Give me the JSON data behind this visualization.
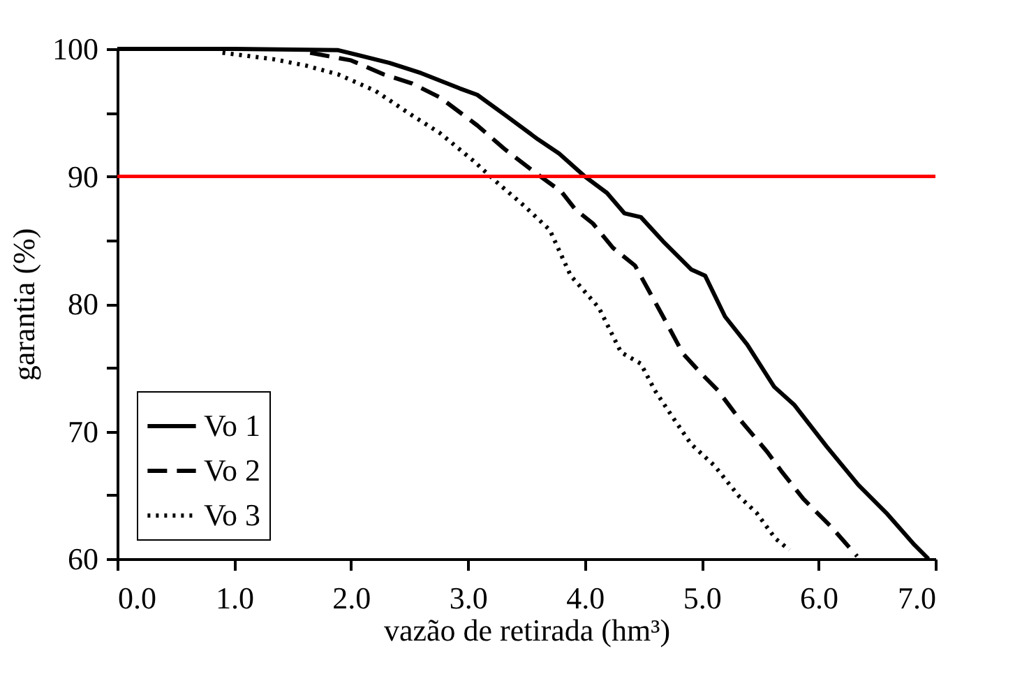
{
  "chart_data": {
    "type": "line",
    "xlabel": "vazão de retirada (hm³)",
    "ylabel": "garantia (%)",
    "xlim": [
      0,
      7
    ],
    "ylim": [
      60,
      100
    ],
    "xticks": [
      {
        "value": 0,
        "label": "0.0"
      },
      {
        "value": 1,
        "label": "1.0"
      },
      {
        "value": 2,
        "label": "2.0"
      },
      {
        "value": 3,
        "label": "3.0"
      },
      {
        "value": 4,
        "label": "4.0"
      },
      {
        "value": 5,
        "label": "5.0"
      },
      {
        "value": 6,
        "label": "6.0"
      },
      {
        "value": 7,
        "label": "7.0"
      }
    ],
    "yticks": [
      60,
      {
        "value": 65,
        "label": null
      },
      70,
      {
        "value": 75,
        "label": null
      },
      80,
      {
        "value": 85,
        "label": null
      },
      90,
      {
        "value": 95,
        "label": null
      },
      100
    ],
    "grid": false,
    "legend": "bottom left",
    "marker": "none",
    "series": [
      {
        "name": "Vo 1",
        "color": "#000000",
        "line_style": "solid",
        "x": [
          0,
          1.0,
          1.89,
          2.33,
          2.6,
          2.93,
          3.08,
          3.32,
          3.6,
          3.78,
          4.0,
          4.19,
          4.34,
          4.48,
          4.67,
          4.91,
          5.03,
          5.2,
          5.39,
          5.62,
          5.79,
          6.07,
          6.34,
          6.58,
          6.82,
          6.94
        ],
        "values": [
          100,
          100,
          99.9,
          98.9,
          98.1,
          96.9,
          96.4,
          94.8,
          92.9,
          91.8,
          90.0,
          88.7,
          87.1,
          86.8,
          84.9,
          82.7,
          82.2,
          79.0,
          76.8,
          73.5,
          72.1,
          68.8,
          65.8,
          63.6,
          61.1,
          60
        ]
      },
      {
        "name": "Vo 2",
        "color": "#000000",
        "line_style": "dashed",
        "x": [
          1.65,
          2.0,
          2.28,
          2.52,
          2.76,
          3.08,
          3.32,
          3.56,
          3.8,
          3.92,
          4.07,
          4.24,
          4.43,
          4.55,
          4.67,
          4.84,
          4.99,
          5.14,
          5.32,
          5.56,
          5.68,
          5.87,
          6.11,
          6.33
        ],
        "values": [
          99.7,
          99.1,
          98.0,
          97.3,
          96.2,
          94.0,
          92.1,
          90.4,
          88.8,
          87.4,
          86.3,
          84.4,
          83.0,
          81.0,
          79.0,
          76.1,
          74.6,
          73.2,
          71.0,
          68.4,
          66.9,
          64.7,
          62.5,
          60.2
        ]
      },
      {
        "name": "Vo 3",
        "color": "#000000",
        "line_style": "dotted",
        "x": [
          0.9,
          1.33,
          1.61,
          1.89,
          2.21,
          2.52,
          2.76,
          3.05,
          3.24,
          3.48,
          3.7,
          3.88,
          4.12,
          4.31,
          4.48,
          4.6,
          4.76,
          4.91,
          5.11,
          5.32,
          5.47,
          5.63,
          5.75
        ],
        "values": [
          99.7,
          99.2,
          98.7,
          98.0,
          96.7,
          94.8,
          93.4,
          91.2,
          89.6,
          87.7,
          85.8,
          82.2,
          79.7,
          76.2,
          75.3,
          73.2,
          71.0,
          69.0,
          67.3,
          64.9,
          63.6,
          61.6,
          60.7
        ]
      }
    ],
    "ref_lines": [
      {
        "axis": "y",
        "value": 90,
        "color": "#ff0000"
      }
    ]
  }
}
